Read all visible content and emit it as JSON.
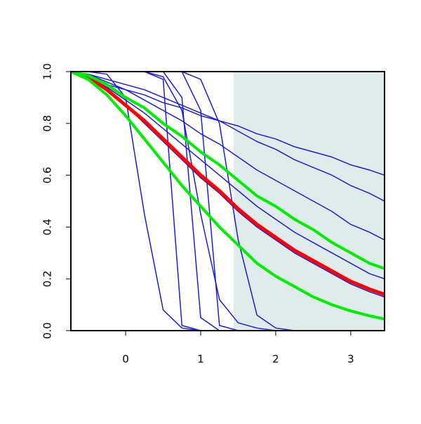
{
  "chart_data": {
    "type": "line",
    "x": [
      -0.73,
      -0.5,
      -0.25,
      0,
      0.25,
      0.5,
      0.75,
      1,
      1.25,
      1.5,
      1.75,
      2,
      2.25,
      2.5,
      2.75,
      3,
      3.25,
      3.45
    ],
    "xlim": [
      -0.73,
      3.45
    ],
    "ylim": [
      0,
      1
    ],
    "xticks": [
      0,
      1,
      2,
      3
    ],
    "yticks": [
      {
        "value": 0,
        "label": "0.0"
      },
      0.2,
      0.4,
      0.6,
      0.8,
      {
        "value": 1,
        "label": "1.0"
      }
    ],
    "shaded_region": {
      "x": [
        1.44,
        3.45
      ],
      "color": "#e0ecec"
    },
    "series": [
      {
        "color": "#1c1cdc",
        "width": 1.5,
        "values": [
          1,
          0.98,
          0.95,
          0.93,
          0.91,
          0.88,
          0.86,
          0.83,
          0.81,
          0.79,
          0.76,
          0.74,
          0.71,
          0.69,
          0.67,
          0.64,
          0.62,
          0.6
        ]
      },
      {
        "color": "#1c1cdc",
        "width": 1.5,
        "values": [
          1,
          0.99,
          0.97,
          0.95,
          0.93,
          0.9,
          0.87,
          0.84,
          0.81,
          0.77,
          0.73,
          0.7,
          0.66,
          0.63,
          0.6,
          0.56,
          0.53,
          0.5
        ]
      },
      {
        "color": "#1c1cdc",
        "width": 1.5,
        "values": [
          1,
          0.99,
          0.96,
          0.93,
          0.89,
          0.85,
          0.81,
          0.76,
          0.72,
          0.67,
          0.62,
          0.58,
          0.54,
          0.5,
          0.46,
          0.41,
          0.38,
          0.35
        ]
      },
      {
        "color": "#1c1cdc",
        "width": 1.5,
        "values": [
          1,
          0.98,
          0.94,
          0.89,
          0.84,
          0.78,
          0.72,
          0.66,
          0.6,
          0.54,
          0.48,
          0.43,
          0.38,
          0.34,
          0.3,
          0.26,
          0.22,
          0.2
        ]
      },
      {
        "color": "#1c1cdc",
        "width": 1.5,
        "values": [
          1,
          0.98,
          0.93,
          0.87,
          0.8,
          0.73,
          0.66,
          0.59,
          0.53,
          0.46,
          0.4,
          0.35,
          0.3,
          0.26,
          0.22,
          0.18,
          0.15,
          0.13
        ]
      },
      {
        "color": "#1c1cdc",
        "width": 1.5,
        "values": [
          1,
          1,
          0.99,
          0.9,
          0.45,
          0.08,
          0.01,
          0,
          0,
          0,
          0,
          0,
          0,
          0,
          0,
          0,
          0,
          0
        ]
      },
      {
        "color": "#1c1cdc",
        "width": 1.5,
        "values": [
          1,
          1,
          1,
          1,
          1,
          0.97,
          0.02,
          0,
          0,
          0,
          0,
          0,
          0,
          0,
          0,
          0,
          0,
          0
        ]
      },
      {
        "color": "#1c1cdc",
        "width": 1.5,
        "values": [
          1,
          1,
          1,
          1,
          1,
          1,
          0.9,
          0.05,
          0,
          0,
          0,
          0,
          0,
          0,
          0,
          0,
          0,
          0
        ]
      },
      {
        "color": "#1c1cdc",
        "width": 1.5,
        "values": [
          1,
          1,
          1,
          1,
          1,
          1,
          1,
          0.85,
          0.02,
          0,
          0,
          0,
          0,
          0,
          0,
          0,
          0,
          0
        ]
      },
      {
        "color": "#1c1cdc",
        "width": 1.5,
        "values": [
          1,
          1,
          1,
          1,
          1,
          1,
          1,
          0.97,
          0.8,
          0.35,
          0.06,
          0.01,
          0,
          0,
          0,
          0,
          0,
          0
        ]
      },
      {
        "color": "#1c1cdc",
        "width": 1.5,
        "values": [
          1,
          1,
          1,
          1,
          1,
          0.98,
          0.85,
          0.45,
          0.12,
          0.03,
          0.01,
          0,
          0,
          0,
          0,
          0,
          0,
          0
        ]
      },
      {
        "color": "#1c1cdc",
        "width": 1.5,
        "values": [
          1,
          1,
          1,
          1,
          1,
          1,
          1,
          1,
          1,
          1,
          1,
          1,
          1,
          1,
          1,
          1,
          1,
          1
        ]
      },
      {
        "color": "#ff0000",
        "width": 5,
        "values": [
          1,
          0.98,
          0.93,
          0.87,
          0.81,
          0.74,
          0.67,
          0.6,
          0.54,
          0.47,
          0.41,
          0.36,
          0.31,
          0.27,
          0.23,
          0.19,
          0.16,
          0.14
        ]
      },
      {
        "color": "#00ee00",
        "width": 4,
        "values": [
          1,
          0.985,
          0.95,
          0.9,
          0.86,
          0.8,
          0.75,
          0.69,
          0.64,
          0.58,
          0.52,
          0.48,
          0.43,
          0.39,
          0.34,
          0.3,
          0.26,
          0.24
        ]
      },
      {
        "color": "#00ee00",
        "width": 4,
        "values": [
          1,
          0.97,
          0.91,
          0.83,
          0.74,
          0.65,
          0.56,
          0.48,
          0.4,
          0.33,
          0.26,
          0.21,
          0.17,
          0.13,
          0.1,
          0.076,
          0.057,
          0.045
        ]
      }
    ]
  }
}
